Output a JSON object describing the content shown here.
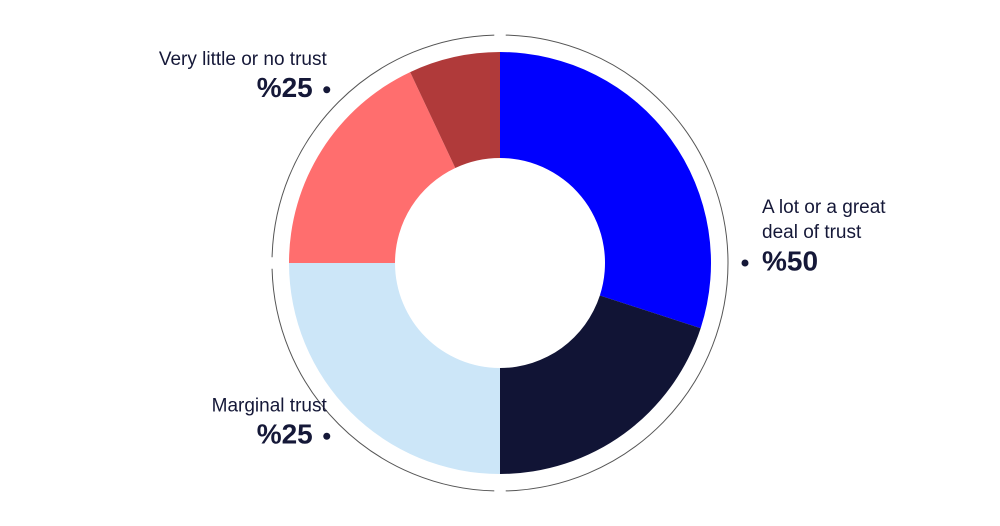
{
  "chart_data": {
    "type": "donut",
    "groups": [
      {
        "label": [
          "A lot or a great",
          "deal of trust"
        ],
        "value": 50,
        "value_label": "%50",
        "segments": [
          {
            "color": "#0000ff",
            "value": 30
          },
          {
            "color": "#111435",
            "value": 20
          }
        ]
      },
      {
        "label": [
          "Marginal trust"
        ],
        "value": 25,
        "value_label": "%25",
        "segments": [
          {
            "color": "#cce6f8",
            "value": 25
          }
        ]
      },
      {
        "label": [
          "Very little or no trust"
        ],
        "value": 25,
        "value_label": "%25",
        "segments": [
          {
            "color": "#ff6e6e",
            "value": 18
          },
          {
            "color": "#b03a3a",
            "value": 7
          }
        ]
      }
    ]
  }
}
